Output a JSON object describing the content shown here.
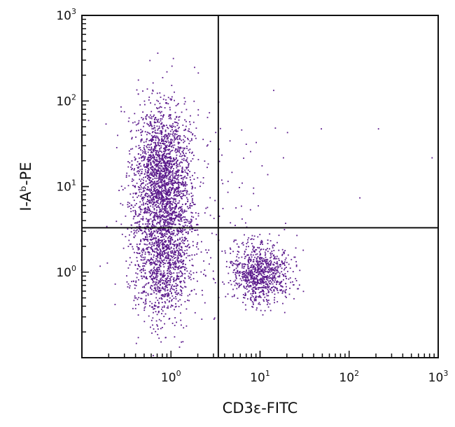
{
  "chart_data": {
    "type": "scatter",
    "title": "",
    "scale": "log",
    "xlabel": "CD3ε-FITC",
    "ylabel": "I-Aᵇ-PE",
    "xlim": [
      0.1,
      1000
    ],
    "ylim": [
      0.1,
      1000
    ],
    "x_ticks": [
      1,
      10,
      100,
      1000
    ],
    "y_ticks": [
      1,
      10,
      100,
      1000
    ],
    "x_tick_labels": [
      {
        "base": "10",
        "exp": "0"
      },
      {
        "base": "10",
        "exp": "1"
      },
      {
        "base": "10",
        "exp": "2"
      },
      {
        "base": "10",
        "exp": "3"
      }
    ],
    "y_tick_labels": [
      {
        "base": "10",
        "exp": "0"
      },
      {
        "base": "10",
        "exp": "1"
      },
      {
        "base": "10",
        "exp": "2"
      },
      {
        "base": "10",
        "exp": "3"
      }
    ],
    "quadrant_gates": {
      "x": 3.4,
      "y": 3.3
    },
    "point_color": "#5b1a8c",
    "populations": [
      {
        "center": [
          0.8,
          12
        ],
        "spread_decades": [
          0.16,
          0.45
        ],
        "count": 2200
      },
      {
        "center": [
          0.8,
          1.3
        ],
        "spread_decades": [
          0.17,
          0.35
        ],
        "count": 1100
      },
      {
        "center": [
          10,
          1.0
        ],
        "spread_decades": [
          0.17,
          0.18
        ],
        "count": 900
      },
      {
        "center": [
          1.5,
          6
        ],
        "spread_decades": [
          0.5,
          0.6
        ],
        "count": 140
      }
    ],
    "sparse_points": [
      [
        210,
        48
      ],
      [
        840,
        22
      ],
      [
        48,
        48
      ],
      [
        18,
        22
      ],
      [
        12,
        14
      ],
      [
        130,
        7.5
      ],
      [
        14,
        135
      ]
    ],
    "grid": false,
    "legend": "none"
  }
}
